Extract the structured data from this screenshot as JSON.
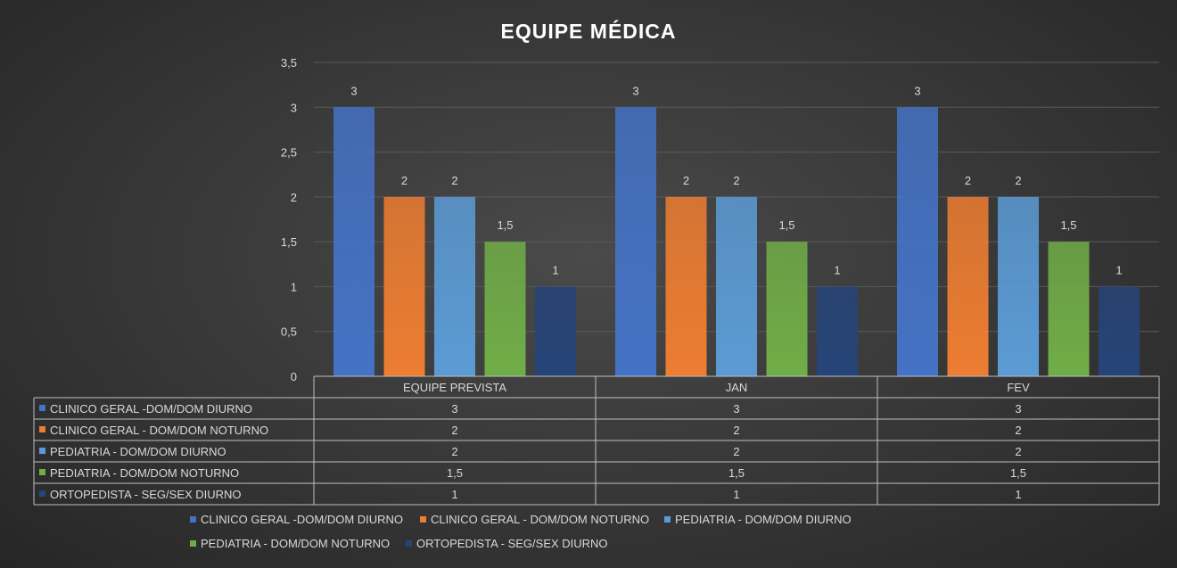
{
  "chart_data": {
    "type": "bar",
    "title": "EQUIPE MÉDICA",
    "categories": [
      "EQUIPE PREVISTA",
      "JAN",
      "FEV"
    ],
    "series": [
      {
        "name": "CLINICO GERAL -DOM/DOM DIURNO",
        "values": [
          3,
          3,
          3
        ],
        "color": "#4472c4"
      },
      {
        "name": "CLINICO GERAL - DOM/DOM NOTURNO",
        "values": [
          2,
          2,
          2
        ],
        "color": "#ed7d31"
      },
      {
        "name": "PEDIATRIA - DOM/DOM DIURNO",
        "values": [
          2,
          2,
          2
        ],
        "color": "#5b9bd5"
      },
      {
        "name": "PEDIATRIA - DOM/DOM NOTURNO",
        "values": [
          1.5,
          1.5,
          1.5
        ],
        "color": "#70ad47"
      },
      {
        "name": "ORTOPEDISTA - SEG/SEX DIURNO",
        "values": [
          1,
          1,
          1
        ],
        "color": "#264478"
      }
    ],
    "ylim": [
      0,
      3.5
    ],
    "yticks": [
      "0",
      "0,5",
      "1",
      "1,5",
      "2",
      "2,5",
      "3",
      "3,5"
    ],
    "grid": true,
    "legend": "bottom",
    "data_table": true
  }
}
